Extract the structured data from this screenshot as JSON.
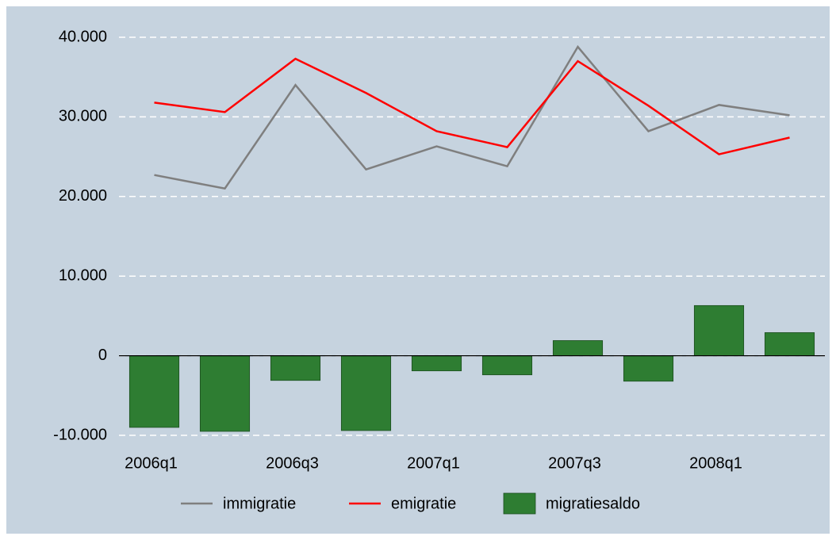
{
  "chart_data": {
    "type": "combo",
    "categories": [
      "2006q1",
      null,
      "2006q3",
      null,
      "2007q1",
      null,
      "2007q3",
      null,
      "2008q1",
      null
    ],
    "series": [
      {
        "name": "immigratie",
        "type": "line",
        "color": "#7f7f7f",
        "values": [
          22700,
          21000,
          34000,
          23400,
          26300,
          23800,
          38800,
          28200,
          31500,
          30200
        ]
      },
      {
        "name": "emigratie",
        "type": "line",
        "color": "#ff0000",
        "values": [
          31800,
          30600,
          37300,
          33000,
          28200,
          26200,
          37000,
          31400,
          25300,
          27400
        ]
      },
      {
        "name": "migratiesaldo",
        "type": "bar",
        "color": "#2e7d32",
        "values": [
          -9000,
          -9500,
          -3100,
          -9400,
          -1900,
          -2400,
          1900,
          -3200,
          6300,
          2900
        ]
      }
    ],
    "ylim": [
      -10000,
      40000
    ],
    "yticks": [
      {
        "value": -10000,
        "label": "-10.000"
      },
      0,
      {
        "value": 10000,
        "label": "10.000"
      },
      {
        "value": 20000,
        "label": "20.000"
      },
      {
        "value": 30000,
        "label": "30.000"
      },
      {
        "value": 40000,
        "label": "40.000"
      }
    ],
    "grid": true
  }
}
